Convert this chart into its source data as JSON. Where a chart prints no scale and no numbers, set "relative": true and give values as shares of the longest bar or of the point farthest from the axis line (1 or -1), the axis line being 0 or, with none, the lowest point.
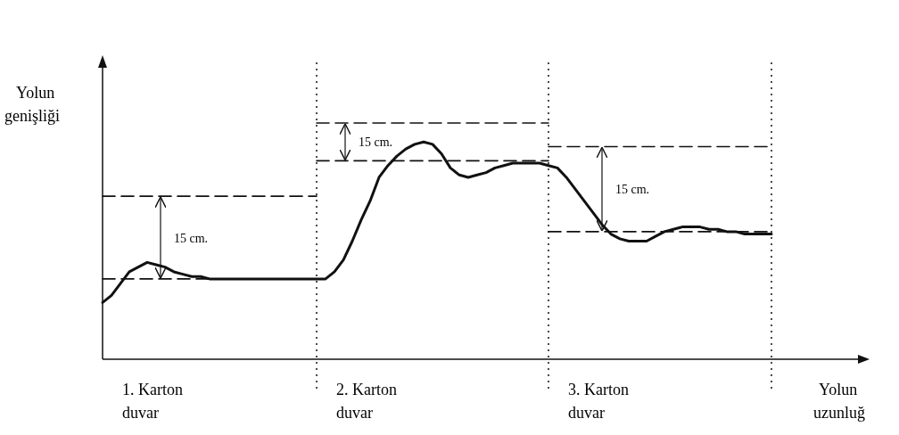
{
  "chart_data": {
    "type": "line",
    "relative": true,
    "xlabel": "Yolun uzunluğ",
    "ylabel": "Yolun genişliği",
    "categories": [
      null,
      null,
      null,
      null,
      null,
      null,
      null,
      null,
      null,
      null,
      null,
      null,
      null,
      null,
      null,
      null,
      null,
      null,
      null,
      null,
      null,
      null,
      null,
      null,
      null,
      null,
      null,
      null,
      null,
      null,
      null,
      null,
      null,
      null,
      null,
      null,
      null,
      null,
      null,
      null,
      null,
      null,
      null,
      null,
      null,
      null,
      null,
      null,
      null,
      null,
      null,
      null,
      null,
      null,
      null,
      null,
      null,
      null,
      null,
      null,
      null,
      null,
      null,
      null,
      null,
      null,
      null,
      null,
      null,
      null,
      null,
      null,
      null,
      null,
      null,
      null
    ],
    "series": [
      {
        "color": "#111111",
        "line_style": "solid",
        "values": [
          0.24,
          0.27,
          0.32,
          0.37,
          0.39,
          0.41,
          0.4,
          0.39,
          0.37,
          0.36,
          0.35,
          0.35,
          0.34,
          0.34,
          0.34,
          0.34,
          0.34,
          0.34,
          0.34,
          0.34,
          0.34,
          0.34,
          0.34,
          0.34,
          0.34,
          0.34,
          0.37,
          0.42,
          0.5,
          0.59,
          0.67,
          0.77,
          0.82,
          0.86,
          0.89,
          0.91,
          0.92,
          0.91,
          0.87,
          0.81,
          0.78,
          0.77,
          0.78,
          0.79,
          0.81,
          0.82,
          0.83,
          0.83,
          0.83,
          0.83,
          0.82,
          0.81,
          0.77,
          0.72,
          0.67,
          0.62,
          0.57,
          0.53,
          0.51,
          0.5,
          0.5,
          0.5,
          0.52,
          0.54,
          0.55,
          0.56,
          0.56,
          0.56,
          0.55,
          0.55,
          0.54,
          0.54,
          0.53,
          0.53,
          0.53,
          0.53
        ]
      },
      {
        "color": "#111111",
        "line_style": "dashed",
        "values": [
          0.34,
          0.34,
          0.34,
          0.34,
          0.34,
          0.34,
          0.34,
          0.34,
          0.34,
          0.34,
          0.34,
          0.34,
          0.34,
          0.34,
          0.34,
          0.34,
          0.34,
          0.34,
          0.34,
          0.34,
          0.34,
          0.34,
          0.34,
          0.34,
          0.34,
          null,
          null,
          null,
          null,
          null,
          null,
          null,
          null,
          null,
          null,
          null,
          null,
          null,
          null,
          null,
          null,
          null,
          null,
          null,
          null,
          null,
          null,
          null,
          null,
          null,
          null,
          null,
          null,
          null,
          null,
          null,
          null,
          null,
          null,
          null,
          null,
          null,
          null,
          null,
          null,
          null,
          null,
          null,
          null,
          null,
          null,
          null,
          null,
          null,
          null,
          null
        ]
      },
      {
        "color": "#111111",
        "line_style": "dashed",
        "values": [
          0.69,
          0.69,
          0.69,
          0.69,
          0.69,
          0.69,
          0.69,
          0.69,
          0.69,
          0.69,
          0.69,
          0.69,
          0.69,
          0.69,
          0.69,
          0.69,
          0.69,
          0.69,
          0.69,
          0.69,
          0.69,
          0.69,
          0.69,
          0.69,
          0.69,
          null,
          null,
          null,
          null,
          null,
          null,
          null,
          null,
          null,
          null,
          null,
          null,
          null,
          null,
          null,
          null,
          null,
          null,
          null,
          null,
          null,
          null,
          null,
          null,
          null,
          null,
          null,
          null,
          null,
          null,
          null,
          null,
          null,
          null,
          null,
          null,
          null,
          null,
          null,
          null,
          null,
          null,
          null,
          null,
          null,
          null,
          null,
          null,
          null,
          null,
          null
        ]
      },
      {
        "color": "#111111",
        "line_style": "dashed",
        "values": [
          null,
          null,
          null,
          null,
          null,
          null,
          null,
          null,
          null,
          null,
          null,
          null,
          null,
          null,
          null,
          null,
          null,
          null,
          null,
          null,
          null,
          null,
          null,
          null,
          0.84,
          0.84,
          0.84,
          0.84,
          0.84,
          0.84,
          0.84,
          0.84,
          0.84,
          0.84,
          0.84,
          0.84,
          0.84,
          0.84,
          0.84,
          0.84,
          0.84,
          0.84,
          0.84,
          0.84,
          0.84,
          0.84,
          0.84,
          0.84,
          0.84,
          0.84,
          0.84,
          null,
          null,
          null,
          null,
          null,
          null,
          null,
          null,
          null,
          null,
          null,
          null,
          null,
          null,
          null,
          null,
          null,
          null,
          null,
          null,
          null,
          null,
          null,
          null,
          null
        ]
      },
      {
        "color": "#111111",
        "line_style": "dashed",
        "values": [
          null,
          null,
          null,
          null,
          null,
          null,
          null,
          null,
          null,
          null,
          null,
          null,
          null,
          null,
          null,
          null,
          null,
          null,
          null,
          null,
          null,
          null,
          null,
          null,
          1,
          1,
          1,
          1,
          1,
          1,
          1,
          1,
          1,
          1,
          1,
          1,
          1,
          1,
          1,
          1,
          1,
          1,
          1,
          1,
          1,
          1,
          1,
          1,
          1,
          1,
          1,
          null,
          null,
          null,
          null,
          null,
          null,
          null,
          null,
          null,
          null,
          null,
          null,
          null,
          null,
          null,
          null,
          null,
          null,
          null,
          null,
          null,
          null,
          null,
          null,
          null
        ]
      },
      {
        "color": "#111111",
        "line_style": "dashed",
        "values": [
          null,
          null,
          null,
          null,
          null,
          null,
          null,
          null,
          null,
          null,
          null,
          null,
          null,
          null,
          null,
          null,
          null,
          null,
          null,
          null,
          null,
          null,
          null,
          null,
          null,
          null,
          null,
          null,
          null,
          null,
          null,
          null,
          null,
          null,
          null,
          null,
          null,
          null,
          null,
          null,
          null,
          null,
          null,
          null,
          null,
          null,
          null,
          null,
          null,
          null,
          0.54,
          0.54,
          0.54,
          0.54,
          0.54,
          0.54,
          0.54,
          0.54,
          0.54,
          0.54,
          0.54,
          0.54,
          0.54,
          0.54,
          0.54,
          0.54,
          0.54,
          0.54,
          0.54,
          0.54,
          0.54,
          0.54,
          0.54,
          0.54,
          0.54,
          0.54
        ]
      },
      {
        "color": "#111111",
        "line_style": "dashed",
        "values": [
          null,
          null,
          null,
          null,
          null,
          null,
          null,
          null,
          null,
          null,
          null,
          null,
          null,
          null,
          null,
          null,
          null,
          null,
          null,
          null,
          null,
          null,
          null,
          null,
          null,
          null,
          null,
          null,
          null,
          null,
          null,
          null,
          null,
          null,
          null,
          null,
          null,
          null,
          null,
          null,
          null,
          null,
          null,
          null,
          null,
          null,
          null,
          null,
          null,
          null,
          0.9,
          0.9,
          0.9,
          0.9,
          0.9,
          0.9,
          0.9,
          0.9,
          0.9,
          0.9,
          0.9,
          0.9,
          0.9,
          0.9,
          0.9,
          0.9,
          0.9,
          0.9,
          0.9,
          0.9,
          0.9,
          0.9,
          0.9,
          0.9,
          0.9,
          0.9
        ]
      }
    ],
    "annotations": [
      "1. Karton duvar",
      "2. Karton duvar",
      "3. Karton duvar",
      "15 cm.",
      "15 cm.",
      "15 cm."
    ]
  }
}
